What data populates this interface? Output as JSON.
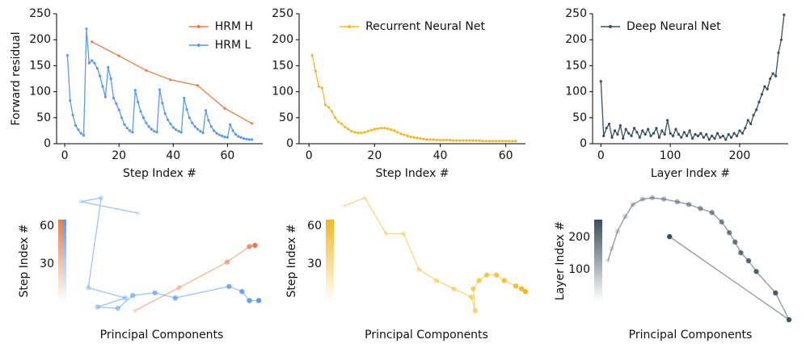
{
  "chart_data": [
    {
      "type": "line",
      "xlabel": "Step Index #",
      "ylabel": "Forward residual",
      "xlim": [
        -3,
        73
      ],
      "ylim": [
        0,
        250
      ],
      "xticks": [
        0,
        20,
        40,
        60
      ],
      "yticks": [
        0,
        50,
        100,
        150,
        200,
        250
      ],
      "legend": "upper right",
      "series": [
        {
          "name": "HRM H",
          "color": "#ee7b45",
          "x": [
            10,
            20,
            30,
            39,
            49,
            59,
            69
          ],
          "values": [
            196,
            169,
            141,
            123,
            112,
            68,
            39
          ]
        },
        {
          "name": "HRM L",
          "color": "#5b9bea",
          "x": [
            1,
            2,
            3,
            4,
            5,
            6,
            7,
            8,
            9,
            10,
            11,
            12,
            13,
            14,
            15,
            16,
            17,
            18,
            19,
            20,
            21,
            22,
            23,
            24,
            25,
            26,
            27,
            28,
            29,
            30,
            31,
            32,
            33,
            34,
            35,
            36,
            37,
            38,
            39,
            40,
            41,
            42,
            43,
            44,
            45,
            46,
            47,
            48,
            49,
            50,
            51,
            52,
            53,
            54,
            55,
            56,
            57,
            58,
            59,
            60,
            61,
            62,
            63,
            64,
            65,
            66,
            67,
            68,
            69
          ],
          "values": [
            170,
            83,
            55,
            35,
            27,
            20,
            16,
            221,
            155,
            160,
            155,
            145,
            130,
            110,
            90,
            147,
            125,
            88,
            77,
            65,
            50,
            37,
            30,
            25,
            22,
            103,
            80,
            62,
            50,
            40,
            33,
            28,
            24,
            22,
            104,
            78,
            58,
            46,
            38,
            31,
            27,
            24,
            22,
            88,
            66,
            50,
            40,
            33,
            28,
            24,
            21,
            64,
            45,
            33,
            25,
            20,
            17,
            15,
            13,
            12,
            37,
            25,
            18,
            14,
            12,
            10,
            9,
            8,
            8
          ]
        }
      ]
    },
    {
      "type": "line",
      "xlabel": "Step Index #",
      "xlim": [
        -3,
        66
      ],
      "ylim": [
        0,
        250
      ],
      "xticks": [
        0,
        20,
        40,
        60
      ],
      "yticks": [
        0,
        50,
        100,
        150,
        200,
        250
      ],
      "legend": "upper center",
      "series": [
        {
          "name": "Recurrent Neural Net",
          "color": "#f5b820",
          "x": [
            1,
            2,
            3,
            4,
            5,
            6,
            7,
            8,
            9,
            10,
            11,
            12,
            13,
            14,
            15,
            16,
            17,
            18,
            19,
            20,
            21,
            22,
            23,
            24,
            25,
            26,
            27,
            28,
            29,
            30,
            31,
            32,
            33,
            34,
            35,
            36,
            37,
            38,
            39,
            40,
            41,
            42,
            43,
            44,
            45,
            46,
            47,
            48,
            49,
            50,
            51,
            52,
            53,
            54,
            55,
            56,
            57,
            58,
            59,
            60,
            61,
            62,
            63
          ],
          "values": [
            170,
            140,
            110,
            107,
            75,
            70,
            62,
            50,
            42,
            38,
            32,
            28,
            24,
            22,
            21,
            21,
            22,
            24,
            26,
            28,
            29,
            30,
            30,
            29,
            27,
            25,
            22,
            19,
            17,
            15,
            13,
            12,
            11,
            10,
            9,
            8,
            8,
            8,
            7,
            7,
            7,
            7,
            7,
            6,
            6,
            6,
            6,
            6,
            6,
            6,
            6,
            6,
            5,
            5,
            5,
            5,
            5,
            5,
            5,
            5,
            5,
            5,
            5
          ]
        }
      ]
    },
    {
      "type": "line",
      "xlabel": "Layer Index #",
      "xlim": [
        -12,
        270
      ],
      "ylim": [
        0,
        250
      ],
      "xticks": [
        0,
        100,
        200
      ],
      "yticks": [
        0,
        50,
        100,
        150,
        200,
        250
      ],
      "legend": "upper left",
      "series": [
        {
          "name": "Deep Neural Net",
          "color": "#3c4f5c",
          "x": [
            0,
            4,
            8,
            12,
            16,
            20,
            24,
            28,
            32,
            36,
            40,
            44,
            48,
            52,
            56,
            60,
            64,
            68,
            72,
            76,
            80,
            84,
            88,
            92,
            96,
            100,
            104,
            108,
            112,
            116,
            120,
            124,
            128,
            132,
            136,
            140,
            144,
            148,
            152,
            156,
            160,
            164,
            168,
            172,
            176,
            180,
            184,
            188,
            192,
            196,
            200,
            204,
            208,
            212,
            216,
            220,
            224,
            228,
            232,
            236,
            240,
            244,
            248,
            252,
            256,
            260,
            264
          ],
          "values": [
            120,
            15,
            30,
            38,
            12,
            25,
            18,
            35,
            10,
            28,
            20,
            15,
            30,
            22,
            12,
            25,
            18,
            28,
            15,
            20,
            30,
            12,
            25,
            18,
            45,
            20,
            15,
            28,
            18,
            12,
            22,
            15,
            25,
            10,
            18,
            15,
            20,
            12,
            18,
            8,
            15,
            10,
            20,
            12,
            15,
            8,
            18,
            12,
            20,
            15,
            25,
            20,
            30,
            45,
            38,
            55,
            65,
            80,
            95,
            110,
            105,
            125,
            135,
            130,
            175,
            200,
            248
          ]
        }
      ]
    },
    {
      "type": "trajectory",
      "xlabel": "Principal Components",
      "colorbar": {
        "label": "Step Index #",
        "lim": [
          0,
          65
        ],
        "ticks": [
          30,
          60
        ],
        "colors": [
          "#ee7b45",
          "#5b9bea"
        ]
      },
      "series": [
        {
          "color": "#ee7b45",
          "x": [
            29,
            53,
            79,
            91,
            94
          ],
          "values": [
            5,
            23,
            43,
            55,
            56
          ]
        },
        {
          "color": "#5b9bea",
          "x": [
            31,
            0,
            11,
            4,
            24,
            9,
            20,
            28,
            40,
            51,
            80,
            87,
            91,
            96
          ],
          "values": [
            81,
            90,
            93,
            23,
            15,
            8,
            7,
            17,
            19,
            15,
            24,
            20,
            13,
            13
          ]
        }
      ]
    },
    {
      "type": "trajectory",
      "xlabel": "Principal Components",
      "colorbar": {
        "label": "Step Index #",
        "lim": [
          0,
          65
        ],
        "ticks": [
          30,
          60
        ],
        "colors": [
          "#f5b820"
        ]
      },
      "series": [
        {
          "color": "#f5b820",
          "x": [
            4,
            15,
            26,
            35,
            43,
            52,
            61,
            70,
            72,
            71,
            74,
            78,
            83,
            87,
            93,
            96,
            98
          ],
          "values": [
            90,
            93,
            80,
            80,
            67,
            63,
            60,
            57,
            52,
            60,
            63,
            65,
            65,
            63,
            61,
            60,
            59
          ]
        }
      ]
    },
    {
      "type": "trajectory",
      "xlabel": "Principal Components",
      "colorbar": {
        "label": "Layer Index #",
        "lim": [
          0,
          255
        ],
        "ticks": [
          100,
          200
        ],
        "colors": [
          "#3c4f5c"
        ]
      },
      "series": [
        {
          "color": "#3c4f5c",
          "x": [
            4,
            6,
            9,
            13,
            17,
            22,
            27,
            33,
            40,
            46,
            52,
            58,
            63,
            67,
            70,
            73,
            77,
            81,
            91,
            98,
            36
          ],
          "values": [
            47,
            56,
            69,
            80,
            89,
            93,
            94,
            93,
            91,
            89,
            86,
            83,
            76,
            68,
            61,
            53,
            47,
            39,
            23,
            3,
            65
          ]
        }
      ]
    }
  ]
}
